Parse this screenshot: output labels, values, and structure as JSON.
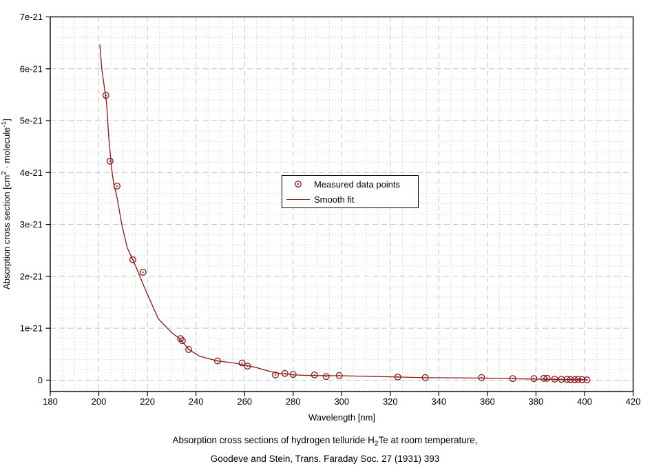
{
  "figure": {
    "background": "#ffffff",
    "accent_color": "#8b1616",
    "border_color": "#000000"
  },
  "legend": {
    "items": [
      {
        "label": "Measured data points",
        "marker": "open-circle-with-center-dot"
      },
      {
        "label": "Smooth fit",
        "marker": "line"
      }
    ]
  },
  "axis": {
    "x_label": "Wavelength [nm]",
    "y_label_parts": {
      "pre": "Absorption cross section [cm",
      "sup1": "2",
      "mid": " · molecule",
      "sup2": "-1",
      "post": "]"
    }
  },
  "caption": {
    "line1_pre": "Absorption cross sections of hydrogen telluride H",
    "line1_sub": "2",
    "line1_post": "Te at room temperature,",
    "line2": "Goodeve and Stein, Trans. Faraday Soc. 27 (1931) 393"
  },
  "chart_data": {
    "type": "scatter",
    "title": "",
    "xlabel": "Wavelength [nm]",
    "ylabel": "Absorption cross section [cm2 · molecule-1]",
    "y_value_scale": "values given in units of 1e-21 cm^2 per molecule",
    "xlim": [
      180,
      420
    ],
    "ylim_units": [
      -0.22,
      7
    ],
    "x_major_step": 20,
    "x_minor_step": 5,
    "y_major_step": 1,
    "y_minor_step": 0.2,
    "grid": {
      "major": "dashed",
      "minor": "dotted",
      "on": true
    },
    "legend_position": "inside-upper-middle",
    "x_ticks": [
      180,
      200,
      220,
      240,
      260,
      280,
      300,
      320,
      340,
      360,
      380,
      400,
      420
    ],
    "y_ticks": [
      {
        "value": 0,
        "label": "0"
      },
      {
        "value": 1,
        "label": "1e-21"
      },
      {
        "value": 2,
        "label": "2e-21"
      },
      {
        "value": 3,
        "label": "3e-21"
      },
      {
        "value": 4,
        "label": "4e-21"
      },
      {
        "value": 5,
        "label": "5e-21"
      },
      {
        "value": 6,
        "label": "6e-21"
      },
      {
        "value": 7,
        "label": "7e-21"
      }
    ],
    "colors": {
      "series": "#8b1616",
      "grid_major": "#c2c2c2",
      "grid_minor": "#c9c9c9",
      "axis": "#000000"
    },
    "series": [
      {
        "name": "Measured data points",
        "type": "scatter",
        "marker": "open-circle-with-center-dot",
        "color": "#8b1616",
        "points": [
          [
            202.9,
            5.49
          ],
          [
            204.6,
            4.22
          ],
          [
            207.5,
            3.74
          ],
          [
            214.0,
            2.32
          ],
          [
            218.2,
            2.08
          ],
          [
            233.6,
            0.8
          ],
          [
            234.4,
            0.76
          ],
          [
            237.0,
            0.59
          ],
          [
            248.9,
            0.37
          ],
          [
            259.0,
            0.33
          ],
          [
            261.2,
            0.27
          ],
          [
            272.7,
            0.1
          ],
          [
            276.6,
            0.13
          ],
          [
            280.0,
            0.11
          ],
          [
            288.8,
            0.1
          ],
          [
            293.6,
            0.07
          ],
          [
            299.0,
            0.09
          ],
          [
            323.1,
            0.06
          ],
          [
            334.4,
            0.05
          ],
          [
            357.6,
            0.05
          ],
          [
            370.4,
            0.03
          ],
          [
            379.2,
            0.03
          ],
          [
            383.2,
            0.035
          ],
          [
            384.6,
            0.035
          ],
          [
            387.7,
            0.02
          ],
          [
            390.5,
            0.015
          ],
          [
            392.8,
            0.015
          ],
          [
            394.2,
            0.01
          ],
          [
            395.9,
            0.01
          ],
          [
            397.3,
            0.015
          ],
          [
            399.0,
            0.01
          ],
          [
            401.0,
            0.005
          ]
        ]
      },
      {
        "name": "Smooth fit",
        "type": "line",
        "color": "#8b1616",
        "points": [
          [
            200.4,
            6.47
          ],
          [
            201.2,
            6.0
          ],
          [
            203.2,
            5.34
          ],
          [
            204.1,
            4.67
          ],
          [
            205.2,
            4.1
          ],
          [
            206.1,
            3.78
          ],
          [
            207.5,
            3.52
          ],
          [
            209.5,
            2.99
          ],
          [
            211.7,
            2.55
          ],
          [
            214.0,
            2.32
          ],
          [
            216.5,
            2.05
          ],
          [
            218.8,
            1.78
          ],
          [
            224.5,
            1.18
          ],
          [
            230.1,
            0.91
          ],
          [
            233.6,
            0.79
          ],
          [
            237.0,
            0.59
          ],
          [
            241.5,
            0.46
          ],
          [
            248.9,
            0.37
          ],
          [
            255.7,
            0.33
          ],
          [
            264.2,
            0.25
          ],
          [
            272.7,
            0.14
          ],
          [
            280.3,
            0.1
          ],
          [
            286.8,
            0.09
          ],
          [
            299.0,
            0.085
          ],
          [
            323.0,
            0.06
          ],
          [
            334.0,
            0.047
          ],
          [
            357.6,
            0.04
          ],
          [
            370.0,
            0.027
          ],
          [
            379.0,
            0.02
          ],
          [
            389.0,
            0.013
          ],
          [
            401.0,
            0.007
          ]
        ]
      }
    ]
  }
}
